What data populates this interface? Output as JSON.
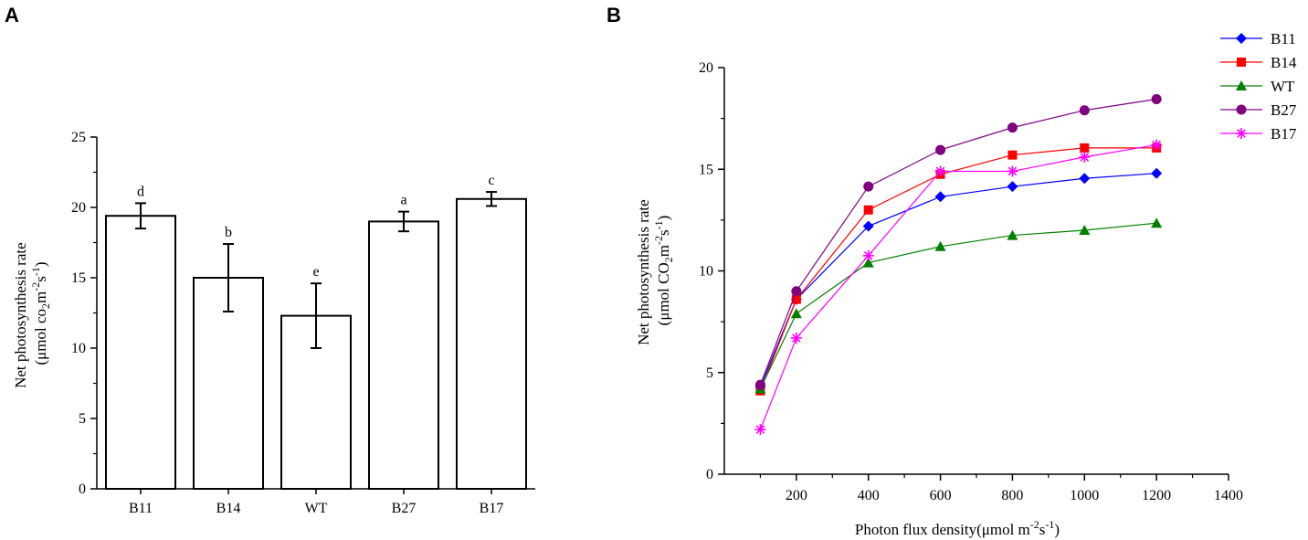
{
  "panels": {
    "a_label": "A",
    "b_label": "B"
  },
  "chart_data": [
    {
      "type": "bar",
      "panel": "A",
      "categories": [
        "B11",
        "B14",
        "WT",
        "B27",
        "B17"
      ],
      "values": [
        19.4,
        15.0,
        12.3,
        19.0,
        20.6
      ],
      "errors": [
        0.9,
        2.4,
        2.3,
        0.7,
        0.5
      ],
      "letters": [
        "d",
        "b",
        "e",
        "a",
        "c"
      ],
      "ylabel_line1": "Net photosynthesis rate",
      "ylabel_line2_prefix": "(μmol co",
      "ylabel_sub": "2",
      "ylabel_mid": "m",
      "ylabel_sup1": "-2",
      "ylabel_mid2": "s",
      "ylabel_sup2": "-1",
      "ylabel_end": ")",
      "ylim": [
        0,
        25
      ],
      "yticks": [
        0,
        5,
        10,
        15,
        20,
        25
      ],
      "ytick_labels": [
        "0",
        "5",
        "10",
        "15",
        "20",
        "25"
      ]
    },
    {
      "type": "line",
      "panel": "B",
      "x": [
        100,
        200,
        400,
        600,
        800,
        1000,
        1200
      ],
      "series": [
        {
          "name": "B11",
          "color": "#0000ff",
          "marker": "diamond",
          "values": [
            4.3,
            8.6,
            12.2,
            13.65,
            14.15,
            14.55,
            14.8
          ]
        },
        {
          "name": "B14",
          "color": "#ff0000",
          "marker": "square",
          "values": [
            4.1,
            8.6,
            13.0,
            14.75,
            15.7,
            16.05,
            16.05
          ]
        },
        {
          "name": "WT",
          "color": "#008000",
          "marker": "triangle",
          "values": [
            4.2,
            7.9,
            10.4,
            11.2,
            11.75,
            12.0,
            12.35
          ]
        },
        {
          "name": "B27",
          "color": "#800080",
          "marker": "circle",
          "values": [
            4.4,
            9.0,
            14.15,
            15.95,
            17.05,
            17.9,
            18.45
          ]
        },
        {
          "name": "B17",
          "color": "#ff00ff",
          "marker": "asterisk",
          "values": [
            2.2,
            6.7,
            10.75,
            14.9,
            14.9,
            15.6,
            16.2
          ]
        }
      ],
      "xlabel_prefix": "Photon flux density(μmol m",
      "xlabel_sup1": "-2",
      "xlabel_mid": "s",
      "xlabel_sup2": "-1",
      "xlabel_end": ")",
      "ylabel_line1": "Net photosynthesis rate",
      "ylabel_line2_prefix": "(μmol CO",
      "ylabel_sub": "2",
      "ylabel_mid": "m",
      "ylabel_sup1": "-2",
      "ylabel_mid2": "s",
      "ylabel_sup2": "-1",
      "ylabel_end": ")",
      "xlim": [
        0,
        1400
      ],
      "ylim": [
        0,
        20
      ],
      "xticks": [
        200,
        400,
        600,
        800,
        1000,
        1200,
        1400
      ],
      "xtick_labels": [
        "200",
        "400",
        "600",
        "800",
        "1000",
        "1200",
        "1400"
      ],
      "yticks": [
        0,
        5,
        10,
        15,
        20
      ],
      "ytick_labels": [
        "0",
        "5",
        "10",
        "15",
        "20"
      ],
      "legend_position": "top-right"
    }
  ]
}
